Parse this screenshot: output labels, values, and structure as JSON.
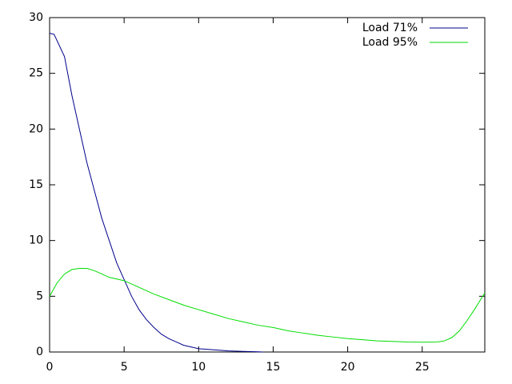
{
  "chart_data": {
    "type": "line",
    "series": [
      {
        "name": "Load 71%",
        "color": "#00008b",
        "x": [
          0,
          0.3,
          1,
          1.5,
          2,
          2.5,
          3,
          3.5,
          4,
          4.5,
          5,
          5.5,
          6,
          6.5,
          7,
          7.5,
          8,
          8.5,
          9,
          9.5,
          10,
          11,
          12,
          13,
          14,
          14.3
        ],
        "values": [
          28.6,
          28.5,
          26.5,
          23,
          20,
          17,
          14.5,
          12,
          10,
          8,
          6.5,
          5,
          3.8,
          2.9,
          2.2,
          1.6,
          1.2,
          0.9,
          0.6,
          0.45,
          0.3,
          0.2,
          0.1,
          0.05,
          0.02,
          0
        ]
      },
      {
        "name": "Load 95%",
        "color": "#00dd00",
        "x": [
          0,
          0.5,
          1,
          1.5,
          2,
          2.5,
          3,
          3.5,
          4,
          5,
          6,
          7,
          8,
          9,
          10,
          11,
          12,
          13,
          14,
          15,
          16,
          17,
          18,
          19,
          20,
          21,
          22,
          23,
          24,
          25,
          26,
          26.5,
          27,
          27.5,
          28,
          28.5,
          29.2
        ],
        "values": [
          5.0,
          6.2,
          7.0,
          7.4,
          7.5,
          7.5,
          7.3,
          7.0,
          6.7,
          6.4,
          5.8,
          5.2,
          4.7,
          4.2,
          3.8,
          3.4,
          3.0,
          2.7,
          2.4,
          2.2,
          1.9,
          1.7,
          1.5,
          1.35,
          1.2,
          1.1,
          1.0,
          0.95,
          0.9,
          0.88,
          0.9,
          1.0,
          1.3,
          1.9,
          2.8,
          3.8,
          5.3
        ]
      }
    ],
    "xlim": [
      0,
      29.2
    ],
    "xticks": [
      0,
      5,
      10,
      15,
      20,
      25
    ],
    "ylim": [
      0,
      30
    ],
    "yticks": [
      0,
      5,
      10,
      15,
      20,
      25,
      30
    ],
    "grid": false,
    "legend": "top-right"
  }
}
